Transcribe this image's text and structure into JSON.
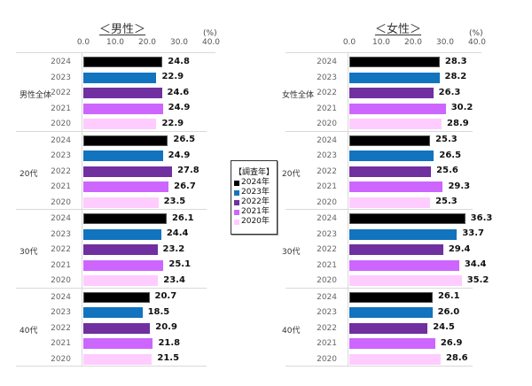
{
  "legend": {
    "title": "【調査年】",
    "items": [
      {
        "label": "2024年",
        "color": "#000000"
      },
      {
        "label": "2023年",
        "color": "#1273be"
      },
      {
        "label": "2022年",
        "color": "#7030a0"
      },
      {
        "label": "2021年",
        "color": "#cc66ff"
      },
      {
        "label": "2020年",
        "color": "#ffccff"
      }
    ]
  },
  "chart_data": [
    {
      "type": "bar",
      "orientation": "horizontal",
      "title": "＜男性＞",
      "xlabel": "(%)",
      "xlim": [
        0,
        40
      ],
      "xticks": [
        "0.0",
        "10.0",
        "20.0",
        "30.0",
        "40.0"
      ],
      "groups": [
        "男性全体",
        "20代",
        "30代",
        "40代"
      ],
      "years": [
        "2024",
        "2023",
        "2022",
        "2021",
        "2020"
      ],
      "values": {
        "男性全体": [
          24.8,
          22.9,
          24.6,
          24.9,
          22.9
        ],
        "20代": [
          26.5,
          24.9,
          27.8,
          26.7,
          23.5
        ],
        "30代": [
          26.1,
          24.4,
          23.2,
          25.1,
          23.4
        ],
        "40代": [
          20.7,
          18.5,
          20.9,
          21.8,
          21.5
        ]
      },
      "labels": {
        "男性全体": [
          "24.8",
          "22.9",
          "24.6",
          "24.9",
          "22.9"
        ],
        "20代": [
          "26.5",
          "24.9",
          "27.8",
          "26.7",
          "23.5"
        ],
        "30代": [
          "26.1",
          "24.4",
          "23.2",
          "25.1",
          "23.4"
        ],
        "40代": [
          "20.7",
          "18.5",
          "20.9",
          "21.8",
          "21.5"
        ]
      }
    },
    {
      "type": "bar",
      "orientation": "horizontal",
      "title": "＜女性＞",
      "xlabel": "(%)",
      "xlim": [
        0,
        40
      ],
      "xticks": [
        "0.0",
        "10.0",
        "20.0",
        "30.0",
        "40.0"
      ],
      "groups": [
        "女性全体",
        "20代",
        "30代",
        "40代"
      ],
      "years": [
        "2024",
        "2023",
        "2022",
        "2021",
        "2020"
      ],
      "values": {
        "女性全体": [
          28.3,
          28.2,
          26.3,
          30.2,
          28.9
        ],
        "20代": [
          25.3,
          26.5,
          25.6,
          29.3,
          25.3
        ],
        "30代": [
          36.3,
          33.7,
          29.4,
          34.4,
          35.2
        ],
        "40代": [
          26.1,
          26.0,
          24.5,
          26.9,
          28.6
        ]
      },
      "labels": {
        "女性全体": [
          "28.3",
          "28.2",
          "26.3",
          "30.2",
          "28.9"
        ],
        "20代": [
          "25.3",
          "26.5",
          "25.6",
          "29.3",
          "25.3"
        ],
        "30代": [
          "36.3",
          "33.7",
          "29.4",
          "34.4",
          "35.2"
        ],
        "40代": [
          "26.1",
          "26.0",
          "24.5",
          "26.9",
          "28.6"
        ]
      }
    }
  ]
}
